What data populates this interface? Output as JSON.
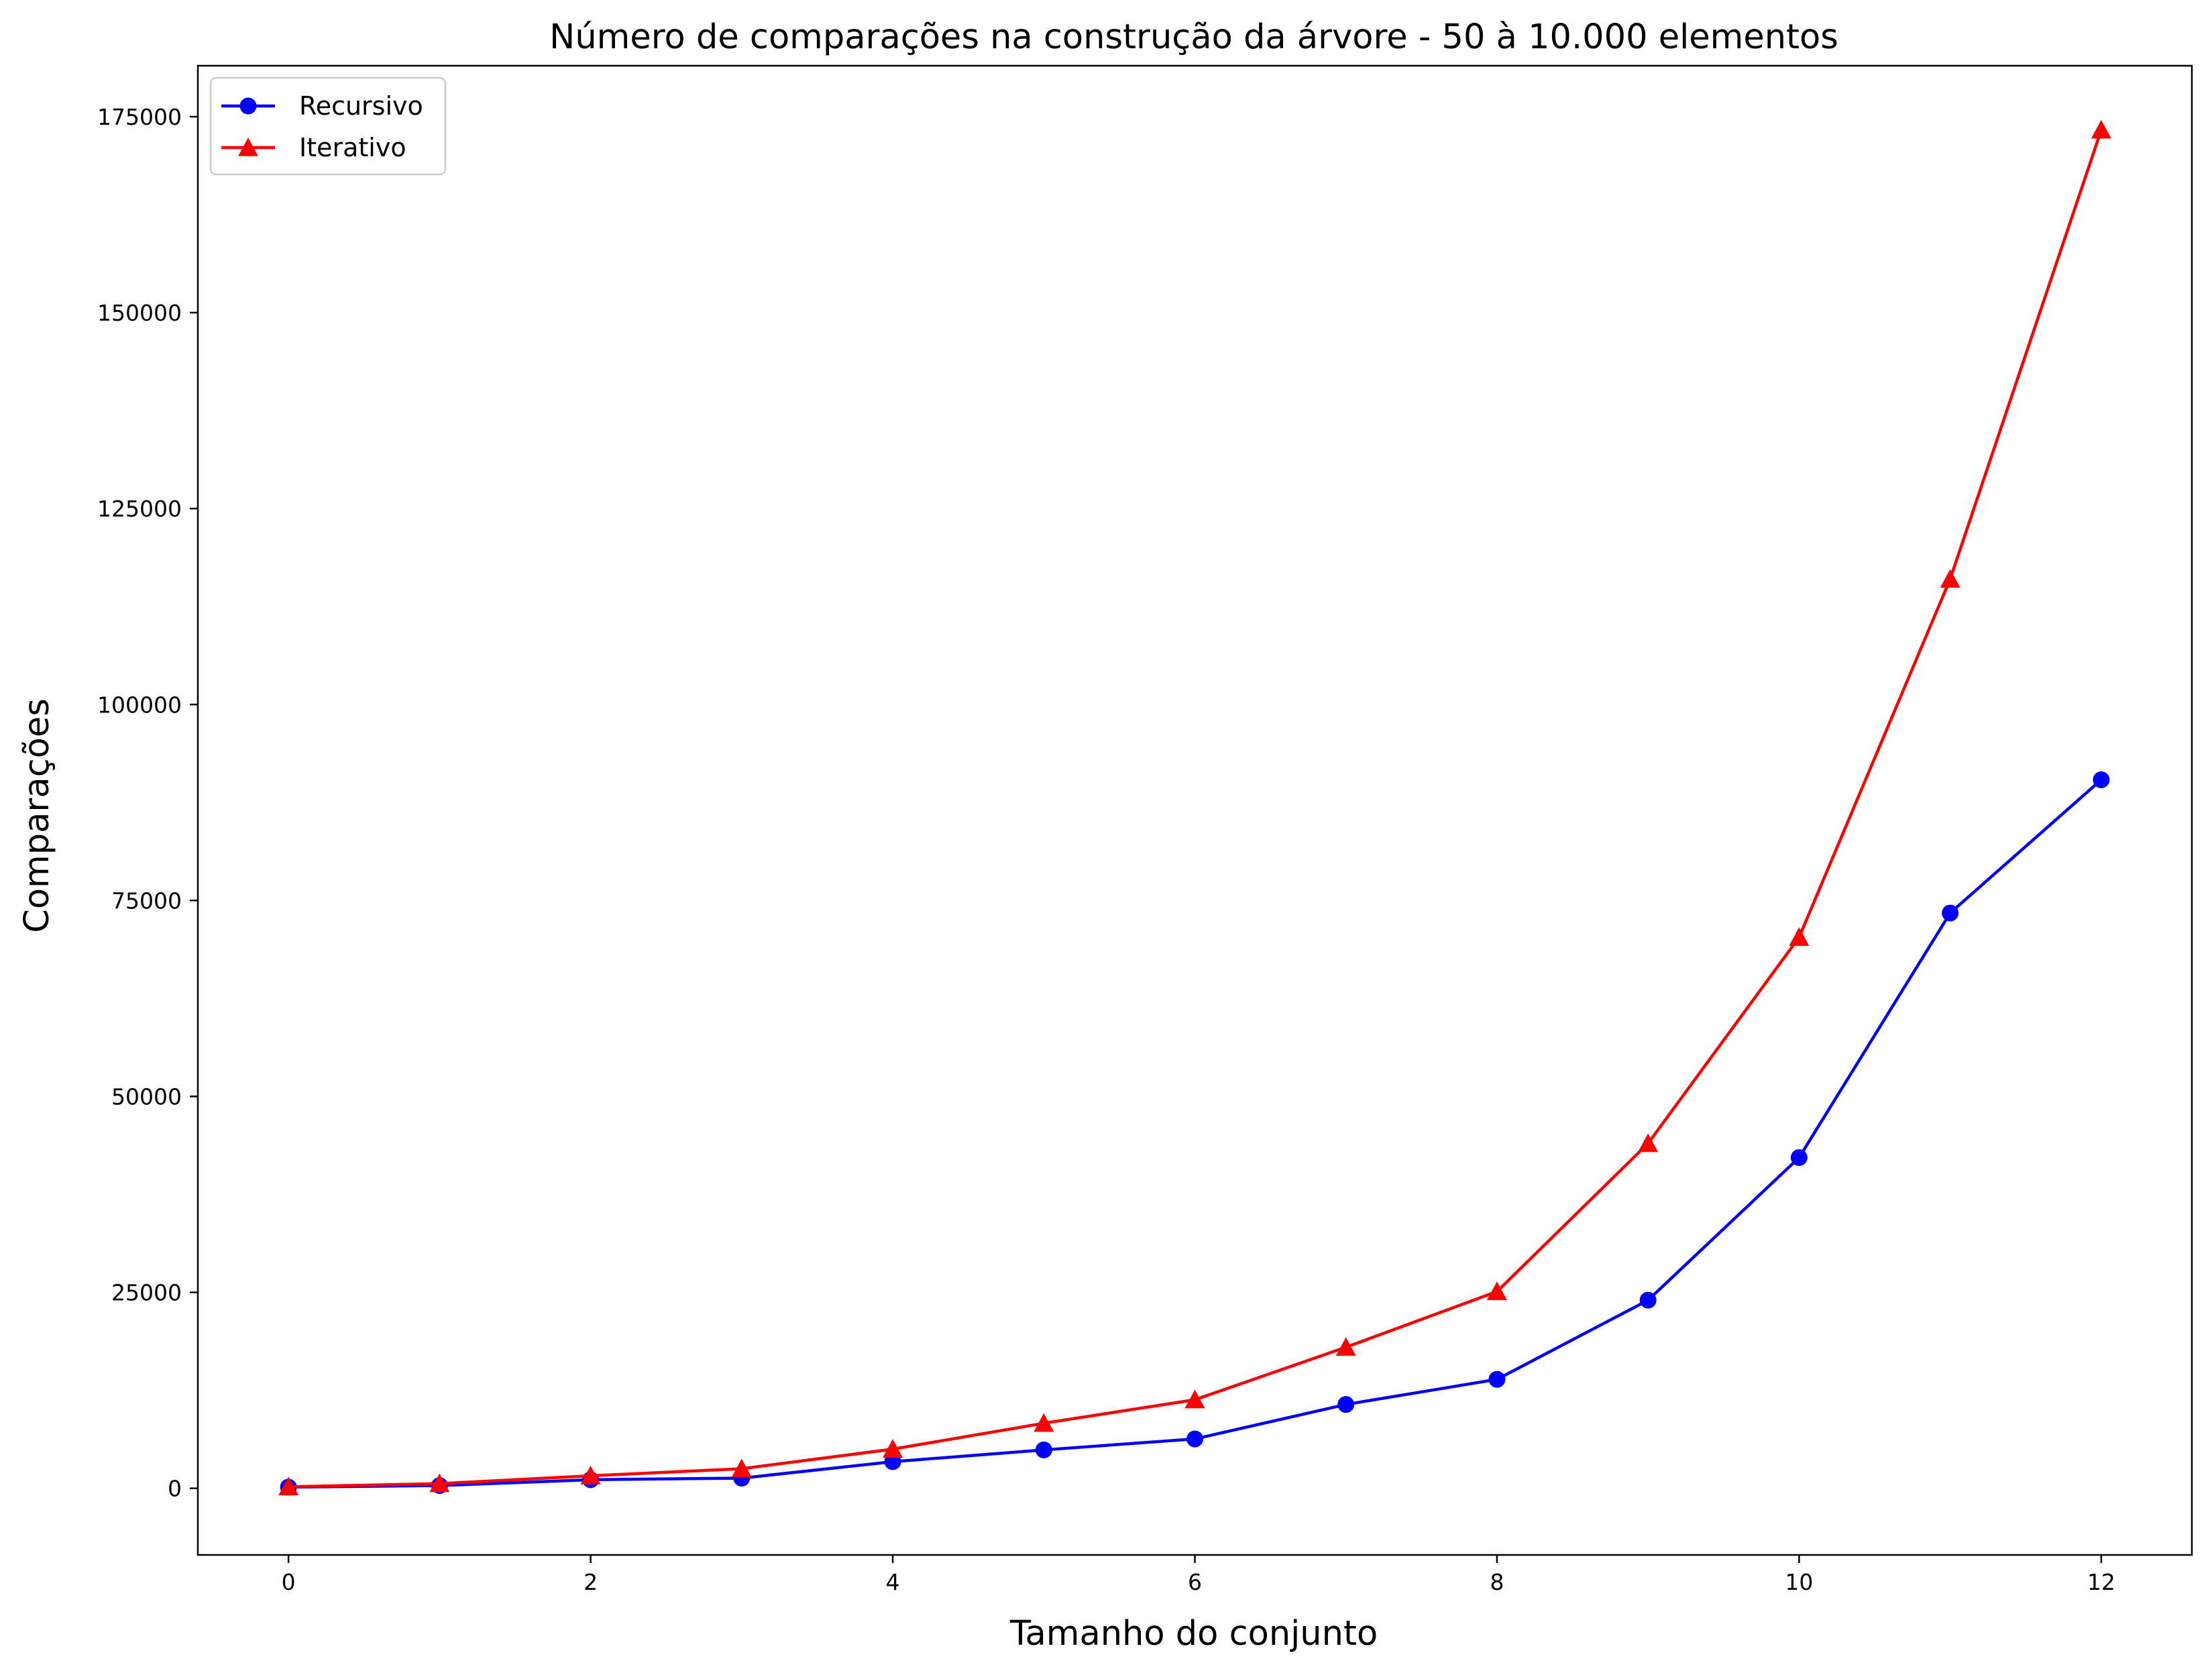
{
  "chart_data": {
    "type": "line",
    "title": "Número de comparações na construção da árvore - 50 à 10.000 elementos",
    "xlabel": "Tamanho do conjunto",
    "ylabel": "Comparações",
    "x": [
      0,
      1,
      2,
      3,
      4,
      5,
      6,
      7,
      8,
      9,
      10,
      11,
      12
    ],
    "xlim": [
      -0.6,
      12.6
    ],
    "ylim": [
      -8500,
      181500
    ],
    "xticks": [
      0,
      2,
      4,
      6,
      8,
      10,
      12
    ],
    "yticks": [
      0,
      25000,
      50000,
      75000,
      100000,
      125000,
      150000,
      175000
    ],
    "xtick_labels": [
      "0",
      "2",
      "4",
      "6",
      "8",
      "10",
      "12"
    ],
    "ytick_labels": [
      "0",
      "25000",
      "50000",
      "75000",
      "100000",
      "125000",
      "150000",
      "175000"
    ],
    "grid": false,
    "legend_position": "top-left",
    "series": [
      {
        "name": "Recursivo",
        "color": "#0000ff",
        "marker": "circle",
        "values": [
          150,
          350,
          1100,
          1300,
          3400,
          4900,
          6300,
          10700,
          13900,
          24000,
          42200,
          73400,
          90400
        ]
      },
      {
        "name": "Iterativo",
        "color": "#ff0000",
        "marker": "triangle",
        "values": [
          200,
          600,
          1600,
          2500,
          5000,
          8300,
          11300,
          18000,
          25100,
          44000,
          70300,
          116000,
          173300
        ]
      }
    ]
  }
}
